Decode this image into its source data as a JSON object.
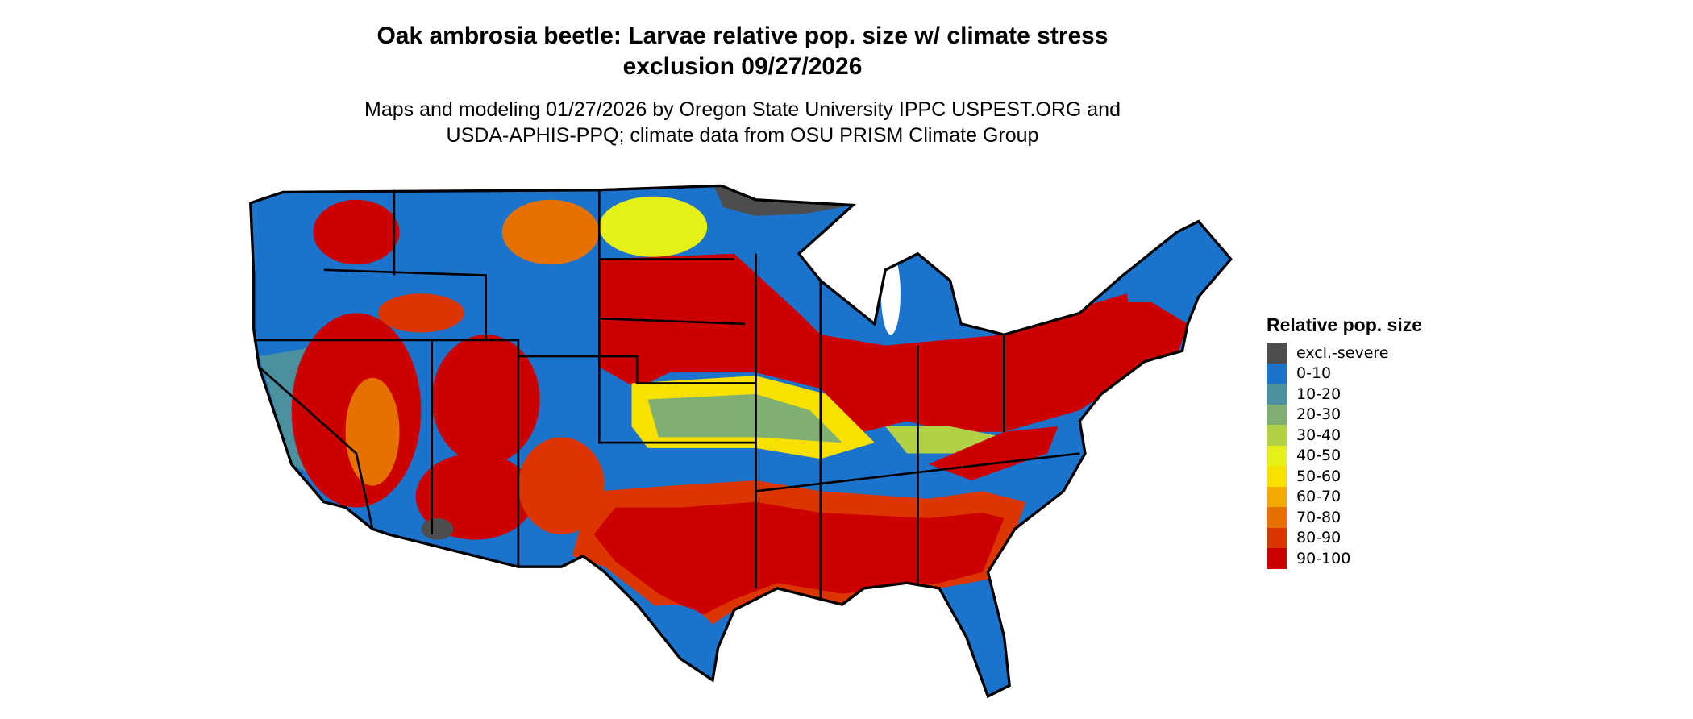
{
  "title": {
    "line1": "Oak ambrosia beetle: Larvae relative pop. size w/ climate stress",
    "line2": "exclusion 09/27/2026"
  },
  "subtitle": {
    "line1": "Maps and modeling 01/27/2026 by Oregon State University IPPC USPEST.ORG and",
    "line2": "USDA-APHIS-PPQ; climate data from OSU PRISM Climate Group"
  },
  "legend": {
    "title": "Relative pop. size",
    "items": [
      {
        "label": "excl.-severe",
        "color": "#4d4d4d"
      },
      {
        "label": "0-10",
        "color": "#1c73cc"
      },
      {
        "label": "10-20",
        "color": "#4a909e"
      },
      {
        "label": "20-30",
        "color": "#7fb072"
      },
      {
        "label": "30-40",
        "color": "#b2d147"
      },
      {
        "label": "40-50",
        "color": "#e5f018"
      },
      {
        "label": "50-60",
        "color": "#f8e000"
      },
      {
        "label": "60-70",
        "color": "#f0aa00"
      },
      {
        "label": "70-80",
        "color": "#e57200"
      },
      {
        "label": "80-90",
        "color": "#db3500"
      },
      {
        "label": "90-100",
        "color": "#cc0000"
      }
    ]
  }
}
